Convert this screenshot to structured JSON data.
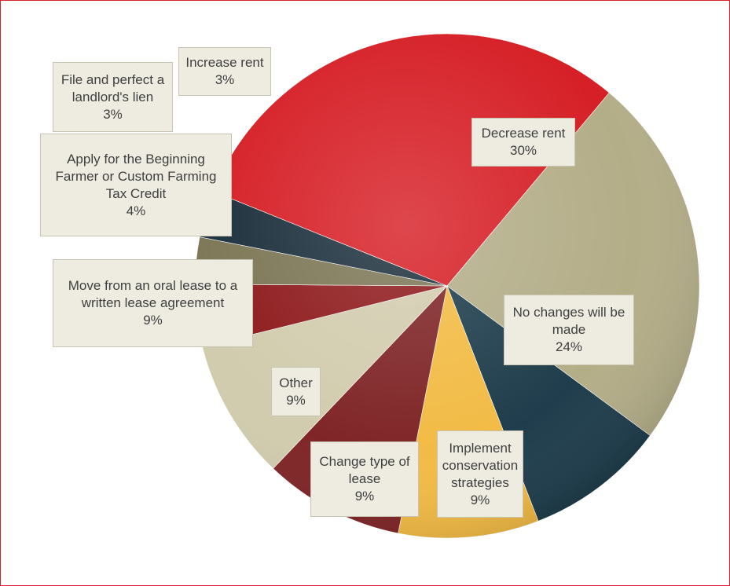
{
  "chart_data": {
    "type": "pie",
    "title": "",
    "slices": [
      {
        "label": "Decrease rent",
        "value": 30,
        "display": "30%",
        "color": "#d61f26"
      },
      {
        "label": "No changes will be made",
        "value": 24,
        "display": "24%",
        "color": "#b3ad88"
      },
      {
        "label": "Implement conservation strategies",
        "value": 9,
        "display": "9%",
        "color": "#1f3d4c"
      },
      {
        "label": "Change type of lease",
        "value": 9,
        "display": "9%",
        "color": "#f2bb45"
      },
      {
        "label": "Other",
        "value": 9,
        "display": "9%",
        "color": "#7f2527"
      },
      {
        "label": "Move from an oral lease to a written lease agreement",
        "value": 9,
        "display": "9%",
        "color": "#d2ccae"
      },
      {
        "label": "Apply for the Beginning Farmer or Custom Farming Tax Credit",
        "value": 4,
        "display": "4%",
        "color": "#8e1a1c"
      },
      {
        "label": "File and perfect a landlord's lien",
        "value": 3,
        "display": "3%",
        "color": "#7c7655"
      },
      {
        "label": "Increase rent",
        "value": 3,
        "display": "3%",
        "color": "#1b2f3c"
      }
    ]
  }
}
